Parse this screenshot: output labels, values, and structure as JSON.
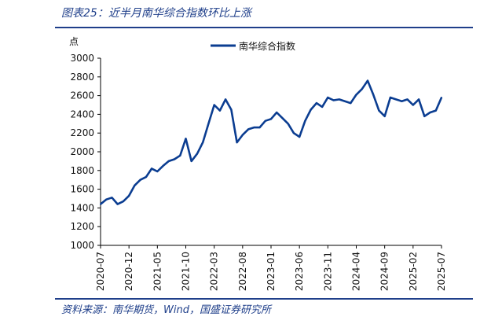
{
  "header": {
    "title": "图表25：近半月南华综合指数环比上涨"
  },
  "footer": {
    "source": "资料来源：南华期货，Wind，国盛证券研究所"
  },
  "colors": {
    "series": "#0b3d91",
    "accent": "#1f3f8a"
  },
  "chart_data": {
    "type": "line",
    "title": "",
    "ylabel": "点",
    "xlabel": "",
    "ylim": [
      1000,
      3000
    ],
    "y_ticks": [
      1000,
      1200,
      1400,
      1600,
      1800,
      2000,
      2200,
      2400,
      2600,
      2800,
      3000
    ],
    "x_ticks": [
      "2020-07",
      "2020-12",
      "2021-05",
      "2021-10",
      "2022-03",
      "2022-08",
      "2023-01",
      "2023-06",
      "2023-11",
      "2024-04",
      "2024-09",
      "2025-02",
      "2025-07"
    ],
    "legend": {
      "position": "top-center"
    },
    "grid": false,
    "series": [
      {
        "name": "南华综合指数",
        "color": "#0b3d91",
        "x": [
          "2020-07",
          "2020-08",
          "2020-09",
          "2020-10",
          "2020-11",
          "2020-12",
          "2021-01",
          "2021-02",
          "2021-03",
          "2021-04",
          "2021-05",
          "2021-06",
          "2021-07",
          "2021-08",
          "2021-09",
          "2021-10",
          "2021-11",
          "2021-12",
          "2022-01",
          "2022-02",
          "2022-03",
          "2022-04",
          "2022-05",
          "2022-06",
          "2022-07",
          "2022-08",
          "2022-09",
          "2022-10",
          "2022-11",
          "2022-12",
          "2023-01",
          "2023-02",
          "2023-03",
          "2023-04",
          "2023-05",
          "2023-06",
          "2023-07",
          "2023-08",
          "2023-09",
          "2023-10",
          "2023-11",
          "2023-12",
          "2024-01",
          "2024-02",
          "2024-03",
          "2024-04",
          "2024-05",
          "2024-06",
          "2024-07",
          "2024-08",
          "2024-09",
          "2024-10",
          "2024-11",
          "2024-12",
          "2025-01",
          "2025-02",
          "2025-03",
          "2025-04",
          "2025-05",
          "2025-06",
          "2025-07"
        ],
        "values": [
          1440,
          1490,
          1510,
          1440,
          1470,
          1530,
          1640,
          1700,
          1730,
          1820,
          1790,
          1850,
          1900,
          1920,
          1960,
          2140,
          1900,
          1980,
          2100,
          2300,
          2500,
          2440,
          2560,
          2450,
          2100,
          2180,
          2240,
          2260,
          2260,
          2330,
          2350,
          2420,
          2360,
          2300,
          2200,
          2160,
          2330,
          2450,
          2520,
          2480,
          2580,
          2550,
          2560,
          2540,
          2520,
          2610,
          2670,
          2760,
          2610,
          2440,
          2380,
          2580,
          2560,
          2540,
          2560,
          2500,
          2560,
          2380,
          2420,
          2440,
          2580
        ]
      }
    ]
  }
}
